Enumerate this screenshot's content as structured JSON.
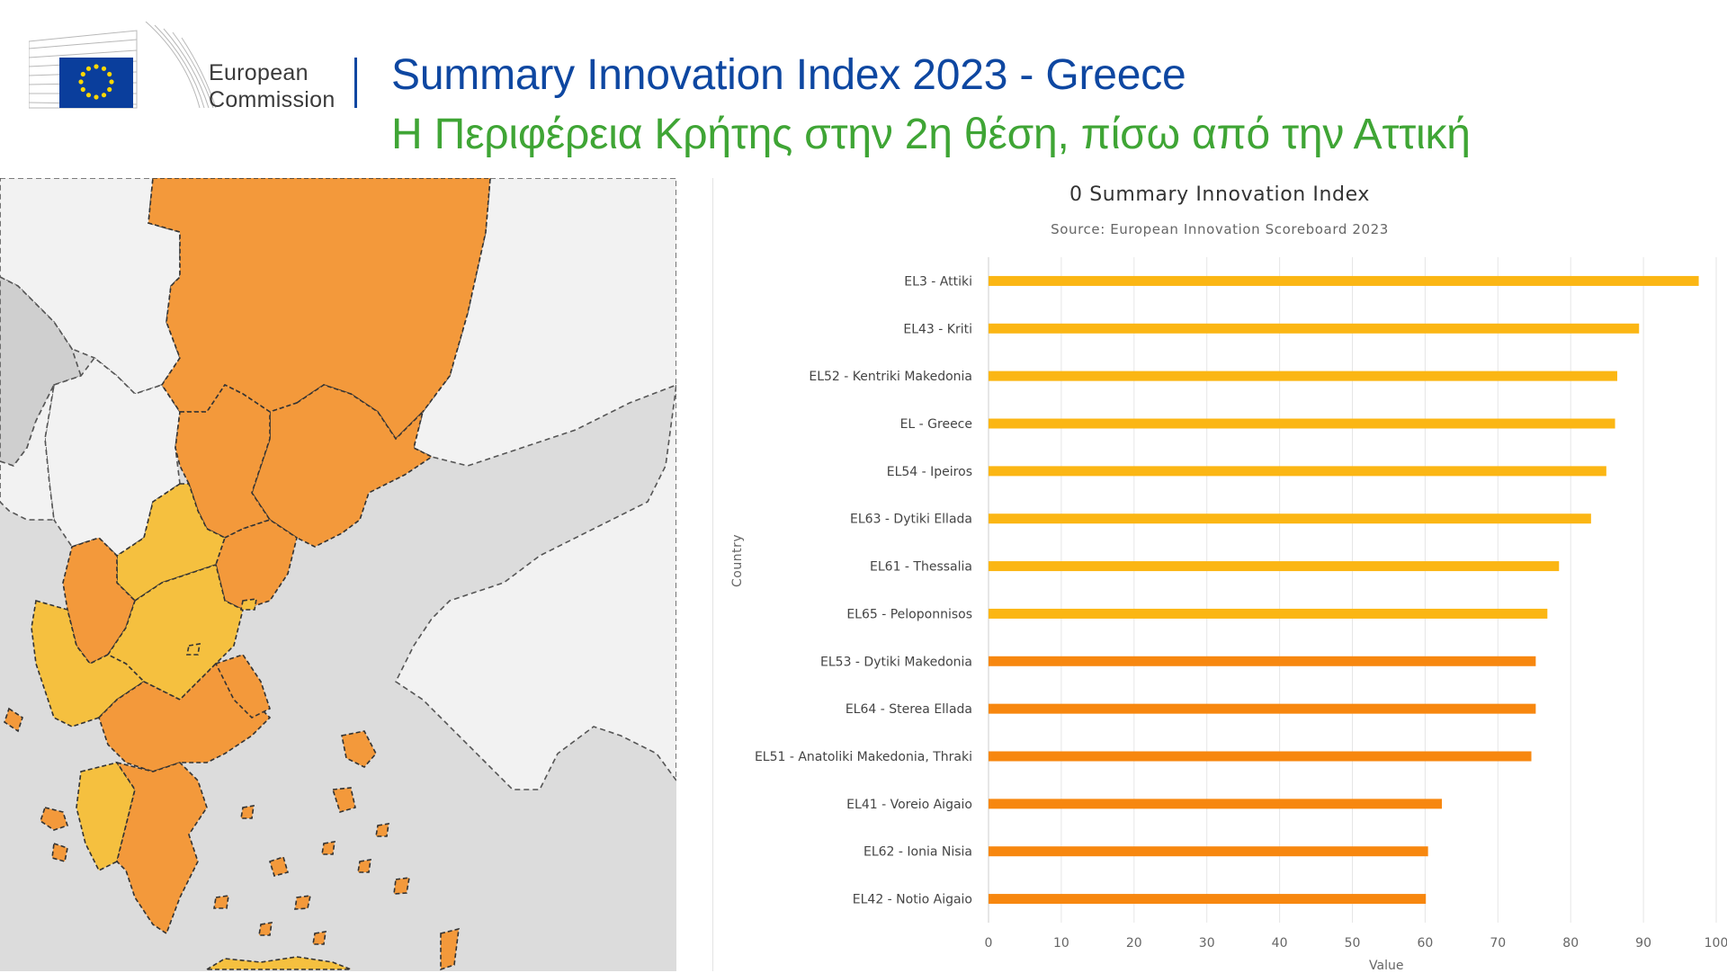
{
  "header": {
    "logo_line1": "European",
    "logo_line2": "Commission",
    "title": "Summary Innovation Index 2023 - Greece",
    "subtitle": "Η Περιφέρεια Κρήτης στην 2η θέση, πίσω από την Αττική"
  },
  "colors": {
    "title_blue": "#0e47a1",
    "subtitle_green": "#3fa535",
    "bar_yellow": "#fbb614",
    "bar_orange": "#f7870f",
    "map_orange": "#f3993b",
    "map_yellow": "#f5c03f",
    "map_land_light": "#f2f2f2",
    "map_land_grey": "#cfcfcf",
    "map_sea": "#dcdcdc"
  },
  "map": {
    "icon": "greece-regions-map"
  },
  "chart_data": {
    "type": "bar",
    "orientation": "horizontal",
    "title": "0 Summary Innovation Index",
    "subtitle": "Source: European Innovation Scoreboard 2023",
    "xlabel": "Value",
    "ylabel": "Country",
    "xlim": [
      0,
      100
    ],
    "xticks": [
      0,
      10,
      20,
      30,
      40,
      50,
      60,
      70,
      80,
      90,
      100
    ],
    "grid": true,
    "categories": [
      "EL3 - Attiki",
      "EL43 - Kriti",
      "EL52 - Kentriki Makedonia",
      "EL - Greece",
      "EL54 - Ipeiros",
      "EL63 - Dytiki Ellada",
      "EL61 - Thessalia",
      "EL65 - Peloponnisos",
      "EL53 - Dytiki Makedonia",
      "EL64 - Sterea Ellada",
      "EL51 - Anatoliki Makedonia, Thraki",
      "EL41 - Voreio Aigaio",
      "EL62 - Ionia Nisia",
      "EL42 - Notio Aigaio"
    ],
    "values": [
      97.6,
      89.4,
      86.4,
      86.1,
      84.9,
      82.8,
      78.4,
      76.8,
      75.2,
      75.2,
      74.6,
      62.3,
      60.4,
      60.1
    ],
    "bar_groups": [
      "yellow",
      "yellow",
      "yellow",
      "yellow",
      "yellow",
      "yellow",
      "yellow",
      "yellow",
      "orange",
      "orange",
      "orange",
      "orange",
      "orange",
      "orange"
    ]
  }
}
